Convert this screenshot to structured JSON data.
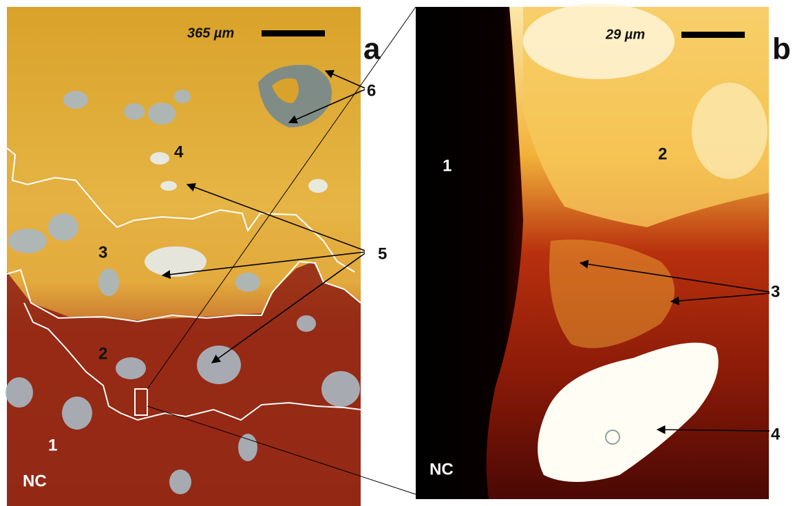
{
  "panels": [
    {
      "letter": "a",
      "scale": "365 µm",
      "labels": [
        "6",
        "4",
        "3",
        "2",
        "1",
        "NC",
        "5"
      ]
    },
    {
      "letter": "b",
      "scale": "29 µm",
      "labels": [
        "1",
        "2",
        "3",
        "4",
        "NC"
      ]
    }
  ]
}
